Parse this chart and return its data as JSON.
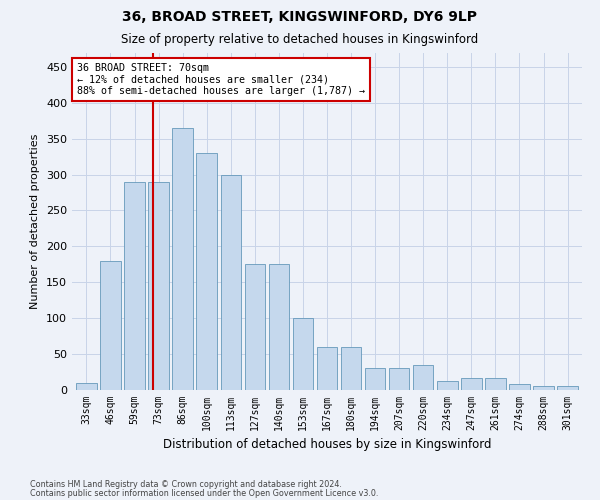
{
  "title1": "36, BROAD STREET, KINGSWINFORD, DY6 9LP",
  "title2": "Size of property relative to detached houses in Kingswinford",
  "xlabel": "Distribution of detached houses by size in Kingswinford",
  "ylabel": "Number of detached properties",
  "footnote1": "Contains HM Land Registry data © Crown copyright and database right 2024.",
  "footnote2": "Contains public sector information licensed under the Open Government Licence v3.0.",
  "annotation_title": "36 BROAD STREET: 70sqm",
  "annotation_line1": "← 12% of detached houses are smaller (234)",
  "annotation_line2": "88% of semi-detached houses are larger (1,787) →",
  "property_line_x": 70,
  "bar_color": "#c5d8ed",
  "bar_edge_color": "#6699bb",
  "property_line_color": "#cc0000",
  "annotation_box_color": "#cc0000",
  "bg_color": "#eef2f9",
  "grid_color": "#c8d4e8",
  "cat_labels": [
    "33sqm",
    "46sqm",
    "59sqm",
    "73sqm",
    "86sqm",
    "100sqm",
    "113sqm",
    "127sqm",
    "140sqm",
    "153sqm",
    "167sqm",
    "180sqm",
    "194sqm",
    "207sqm",
    "220sqm",
    "234sqm",
    "247sqm",
    "261sqm",
    "274sqm",
    "288sqm",
    "301sqm"
  ],
  "values": [
    10,
    180,
    290,
    290,
    365,
    330,
    300,
    175,
    175,
    100,
    60,
    60,
    30,
    30,
    35,
    12,
    17,
    17,
    8,
    5,
    5
  ],
  "ylim": [
    0,
    470
  ],
  "yticks": [
    0,
    50,
    100,
    150,
    200,
    250,
    300,
    350,
    400,
    450
  ]
}
